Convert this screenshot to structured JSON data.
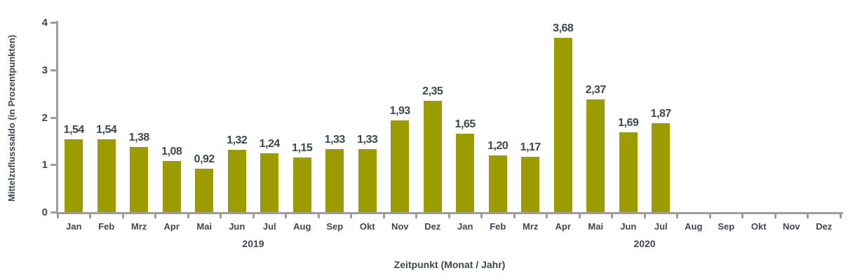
{
  "chart_data": {
    "type": "bar",
    "title": "",
    "xlabel": "Zeitpunkt (Monat / Jahr)",
    "ylabel": "Mittelzuflusssaldo (in Prozentpunkten)",
    "ylim": [
      0,
      4
    ],
    "yticks": [
      "0",
      "1",
      "2",
      "3",
      "4"
    ],
    "grid": false,
    "legend_position": "none",
    "bar_color": "#9C9B00",
    "axis_color": "#9D9D9D",
    "text_color": "#3E4851",
    "categories": [
      "Jan",
      "Feb",
      "Mrz",
      "Apr",
      "Mai",
      "Jun",
      "Jul",
      "Aug",
      "Sep",
      "Okt",
      "Nov",
      "Dez",
      "Jan",
      "Feb",
      "Mrz",
      "Apr",
      "Mai",
      "Jun",
      "Jul",
      "Aug",
      "Sep",
      "Okt",
      "Nov",
      "Dez"
    ],
    "year_groups": [
      {
        "year": "2019",
        "start_index": 0,
        "month_count": 12
      },
      {
        "year": "2020",
        "start_index": 12,
        "month_count": 12
      }
    ],
    "values": [
      1.54,
      1.54,
      1.38,
      1.08,
      0.92,
      1.32,
      1.24,
      1.15,
      1.33,
      1.33,
      1.93,
      2.35,
      1.65,
      1.2,
      1.17,
      3.68,
      2.37,
      1.69,
      1.87,
      null,
      null,
      null,
      null,
      null
    ],
    "value_labels": [
      "1,54",
      "1,54",
      "1,38",
      "1,08",
      "0,92",
      "1,32",
      "1,24",
      "1,15",
      "1,33",
      "1,33",
      "1,93",
      "2,35",
      "1,65",
      "1,20",
      "1,17",
      "3,68",
      "2,37",
      "1,69",
      "1,87",
      "",
      "",
      "",
      "",
      ""
    ]
  }
}
